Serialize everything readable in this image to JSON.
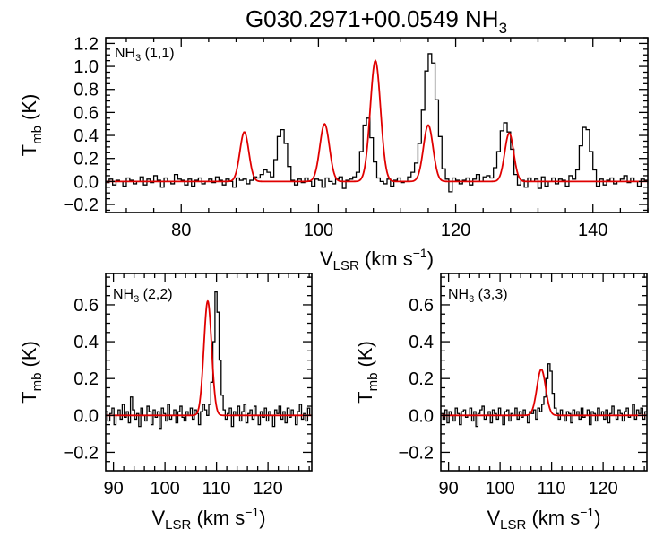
{
  "title": {
    "main": "G030.2971+00.0549 NH",
    "sub": "3"
  },
  "colors": {
    "observed": "#000000",
    "fit": "#e00000"
  },
  "chart_data": [
    {
      "id": "nh3_11",
      "type": "line",
      "panel_label": {
        "prefix": "NH",
        "sub": "3",
        "suffix": " (1,1)"
      },
      "xlabel": {
        "main": "V",
        "sub": "LSR",
        "unit": " (km s",
        "sup": "−1",
        "close": ")"
      },
      "ylabel": {
        "main": "T",
        "sub": "mb",
        "unit": " (K)"
      },
      "xlim": [
        69,
        148
      ],
      "ylim": [
        -0.27,
        1.25
      ],
      "xticks": [
        80,
        100,
        120,
        140
      ],
      "xtick_labels": [
        "80",
        "100",
        "120",
        "140"
      ],
      "yticks": [
        -0.2,
        0.0,
        0.2,
        0.4,
        0.6,
        0.8,
        1.0,
        1.2
      ],
      "ytick_labels": [
        "−0.2",
        "0.0",
        "0.2",
        "0.4",
        "0.6",
        "0.8",
        "1.0",
        "1.2"
      ],
      "series": [
        {
          "style": "step",
          "x_start": 69.0,
          "dx": 0.5,
          "values": [
            -0.01,
            0.02,
            -0.03,
            0.01,
            0.0,
            -0.04,
            0.03,
            0.01,
            -0.02,
            0.0,
            0.04,
            -0.03,
            0.02,
            -0.01,
            0.05,
            0.01,
            -0.05,
            0.03,
            0.0,
            -0.02,
            0.06,
            0.02,
            0.01,
            -0.03,
            0.02,
            -0.04,
            0.01,
            0.03,
            -0.02,
            0.0,
            0.02,
            -0.01,
            0.04,
            0.01,
            -0.03,
            0.02,
            0.0,
            -0.05,
            0.03,
            0.01,
            0.02,
            -0.02,
            0.01,
            0.04,
            0.03,
            0.06,
            0.1,
            0.08,
            0.04,
            0.19,
            0.39,
            0.45,
            0.33,
            0.13,
            0.01,
            -0.03,
            0.02,
            -0.01,
            0.03,
            0.0,
            -0.04,
            0.02,
            0.01,
            -0.05,
            0.03,
            0.0,
            -0.02,
            0.02,
            0.04,
            -0.06,
            0.01,
            0.02,
            0.04,
            0.08,
            0.26,
            0.49,
            0.55,
            0.38,
            0.17,
            0.03,
            0.0,
            -0.02,
            0.02,
            -0.04,
            0.01,
            0.03,
            -0.01,
            0.0,
            0.04,
            0.08,
            0.16,
            0.33,
            0.62,
            0.96,
            1.11,
            1.03,
            0.71,
            0.39,
            0.11,
            0.02,
            -0.09,
            0.03,
            0.01,
            -0.02,
            0.01,
            0.03,
            -0.03,
            0.02,
            0.06,
            0.0,
            0.04,
            0.05,
            0.03,
            0.12,
            0.26,
            0.44,
            0.51,
            0.43,
            0.28,
            0.06,
            -0.03,
            0.01,
            -0.05,
            0.03,
            0.0,
            0.02,
            -0.06,
            0.04,
            -0.04,
            0.0,
            0.03,
            -0.02,
            0.02,
            0.01,
            -0.04,
            0.05,
            0.02,
            0.1,
            0.31,
            0.47,
            0.45,
            0.26,
            0.1,
            -0.04,
            0.02,
            -0.03,
            0.01,
            0.03,
            -0.02,
            0.0,
            0.02,
            0.05,
            -0.01,
            0.03,
            0.0,
            -0.04,
            0.02,
            0.01,
            -0.02,
            0.04,
            -0.03,
            0.01,
            0.0
          ]
        },
        {
          "style": "fit",
          "components": [
            {
              "center": 89.2,
              "amp": 0.43,
              "sigma": 0.65
            },
            {
              "center": 100.9,
              "amp": 0.5,
              "sigma": 0.7
            },
            {
              "center": 108.3,
              "amp": 1.05,
              "sigma": 0.75
            },
            {
              "center": 116.0,
              "amp": 0.49,
              "sigma": 0.7
            },
            {
              "center": 127.8,
              "amp": 0.42,
              "sigma": 0.65
            }
          ]
        }
      ]
    },
    {
      "id": "nh3_22",
      "type": "line",
      "panel_label": {
        "prefix": "NH",
        "sub": "3",
        "suffix": " (2,2)"
      },
      "xlabel": {
        "main": "V",
        "sub": "LSR",
        "unit": " (km s",
        "sup": "−1",
        "close": ")"
      },
      "ylabel": {
        "main": "T",
        "sub": "mb",
        "unit": " (K)"
      },
      "xlim": [
        88.5,
        128.5
      ],
      "ylim": [
        -0.3,
        0.77
      ],
      "xticks": [
        90,
        100,
        110,
        120
      ],
      "xtick_labels": [
        "90",
        "100",
        "110",
        "120"
      ],
      "yticks": [
        -0.2,
        0.0,
        0.2,
        0.4,
        0.6
      ],
      "ytick_labels": [
        "−0.2",
        "0.0",
        "0.2",
        "0.4",
        "0.6"
      ],
      "series": [
        {
          "style": "step",
          "x_start": 88.5,
          "dx": 0.4,
          "values": [
            0.02,
            -0.03,
            0.01,
            0.04,
            -0.05,
            0.0,
            0.03,
            -0.02,
            0.06,
            -0.01,
            0.02,
            -0.04,
            0.1,
            0.03,
            -0.02,
            0.01,
            -0.06,
            0.04,
            0.0,
            -0.03,
            0.05,
            0.02,
            -0.05,
            0.03,
            -0.01,
            0.02,
            -0.07,
            0.04,
            0.01,
            -0.03,
            0.06,
            -0.02,
            0.0,
            0.03,
            -0.04,
            0.02,
            0.05,
            -0.01,
            -0.03,
            0.02,
            0.0,
            0.04,
            -0.02,
            0.03,
            0.01,
            -0.05,
            0.02,
            0.06,
            0.03,
            0.0,
            0.06,
            0.18,
            0.4,
            0.67,
            0.56,
            0.3,
            0.11,
            0.03,
            -0.02,
            0.01,
            0.04,
            -0.06,
            0.02,
            0.0,
            0.05,
            -0.03,
            0.02,
            0.06,
            -0.04,
            0.01,
            0.03,
            -0.02,
            0.05,
            0.0,
            -0.05,
            0.02,
            -0.01,
            0.04,
            -0.03,
            0.02,
            0.0,
            -0.06,
            0.03,
            0.01,
            0.05,
            -0.02,
            0.02,
            -0.04,
            0.04,
            -0.01,
            0.03,
            0.0,
            -0.05,
            0.02,
            0.06,
            -0.02,
            0.01,
            -0.03,
            0.04,
            0.0
          ]
        },
        {
          "style": "fit",
          "components": [
            {
              "center": 108.3,
              "amp": 0.62,
              "sigma": 0.75
            }
          ]
        }
      ]
    },
    {
      "id": "nh3_33",
      "type": "line",
      "panel_label": {
        "prefix": "NH",
        "sub": "3",
        "suffix": " (3,3)"
      },
      "xlabel": {
        "main": "V",
        "sub": "LSR",
        "unit": " (km s",
        "sup": "−1",
        "close": ")"
      },
      "ylabel": {
        "main": "T",
        "sub": "mb",
        "unit": " (K)"
      },
      "xlim": [
        88.5,
        128.5
      ],
      "ylim": [
        -0.3,
        0.77
      ],
      "xticks": [
        90,
        100,
        110,
        120
      ],
      "xtick_labels": [
        "90",
        "100",
        "110",
        "120"
      ],
      "yticks": [
        -0.2,
        0.0,
        0.2,
        0.4,
        0.6
      ],
      "ytick_labels": [
        "−0.2",
        "0.0",
        "0.2",
        "0.4",
        "0.6"
      ],
      "series": [
        {
          "style": "step",
          "x_start": 88.5,
          "dx": 0.4,
          "values": [
            0.01,
            -0.02,
            0.03,
            -0.04,
            0.02,
            0.0,
            -0.03,
            0.04,
            0.01,
            -0.05,
            0.02,
            0.03,
            -0.01,
            0.0,
            0.04,
            -0.03,
            0.02,
            -0.06,
            0.01,
            0.03,
            0.05,
            -0.02,
            0.0,
            0.02,
            -0.04,
            0.03,
            0.01,
            -0.02,
            0.04,
            0.0,
            -0.05,
            0.02,
            0.03,
            -0.03,
            0.01,
            0.0,
            0.04,
            -0.02,
            0.02,
            -0.01,
            0.03,
            0.0,
            -0.04,
            0.02,
            0.01,
            0.03,
            -0.02,
            0.04,
            0.02,
            0.06,
            0.1,
            0.2,
            0.28,
            0.24,
            0.12,
            0.04,
            0.01,
            -0.02,
            0.03,
            0.0,
            -0.03,
            0.02,
            0.01,
            -0.04,
            0.03,
            0.0,
            0.02,
            -0.02,
            0.04,
            -0.01,
            0.0,
            0.03,
            -0.05,
            0.02,
            0.01,
            -0.03,
            0.04,
            0.0,
            0.02,
            -0.02,
            0.03,
            -0.04,
            0.01,
            0.05,
            0.0,
            -0.02,
            0.03,
            0.01,
            -0.03,
            0.02,
            0.04,
            -0.01,
            0.0,
            0.06,
            -0.02,
            0.03,
            0.01,
            0.04,
            -0.02,
            0.02
          ]
        },
        {
          "style": "fit",
          "components": [
            {
              "center": 108.0,
              "amp": 0.25,
              "sigma": 0.85
            }
          ]
        }
      ]
    }
  ]
}
